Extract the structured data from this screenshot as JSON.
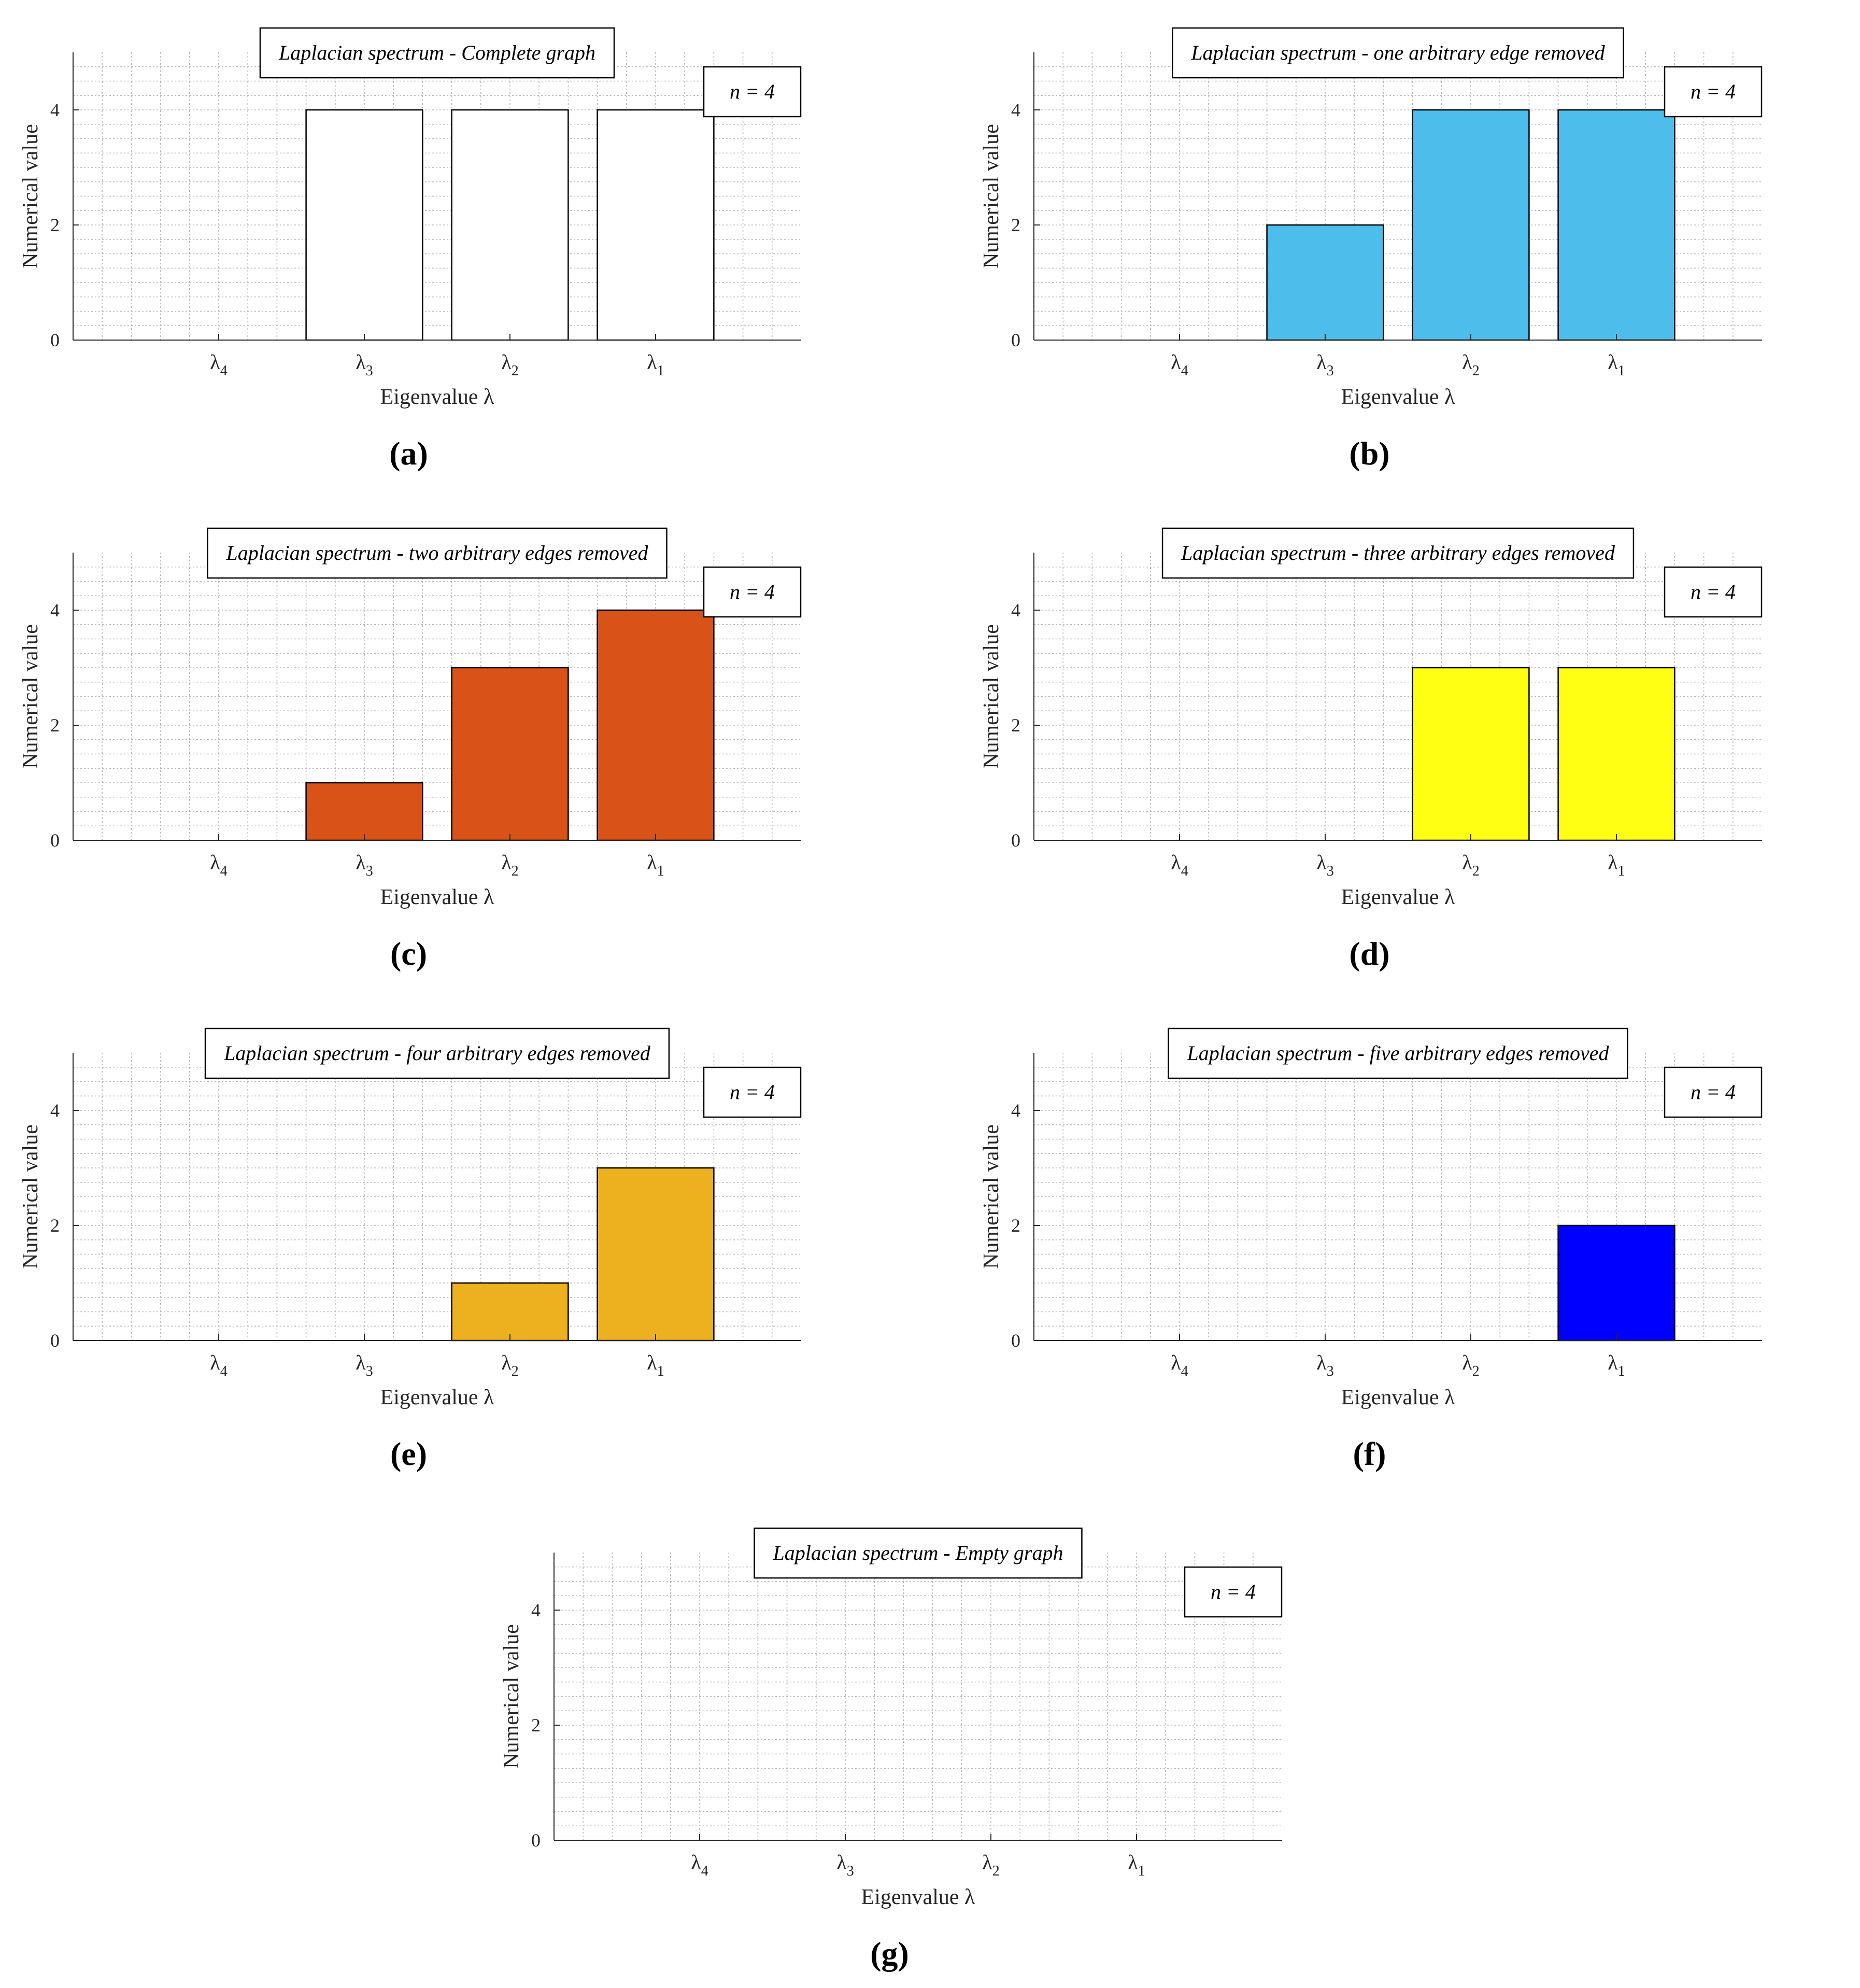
{
  "figure": {
    "panels": [
      {
        "label": "(a)",
        "annotation": "n = 4"
      },
      {
        "label": "(b)",
        "annotation": "n = 4"
      },
      {
        "label": "(c)",
        "annotation": "n = 4"
      },
      {
        "label": "(d)",
        "annotation": "n = 4"
      },
      {
        "label": "(e)",
        "annotation": "n = 4"
      },
      {
        "label": "(f)",
        "annotation": "n = 4"
      },
      {
        "label": "(g)",
        "annotation": "n = 4"
      }
    ]
  },
  "chart_data": [
    {
      "type": "bar",
      "title": "Laplacian spectrum - Complete graph",
      "xlabel": "Eigenvalue λ",
      "ylabel": "Numerical value",
      "categories": [
        "λ4",
        "λ3",
        "λ2",
        "λ1"
      ],
      "category_symbol": "λ",
      "category_subscripts": [
        "4",
        "3",
        "2",
        "1"
      ],
      "values": [
        0,
        4,
        4,
        4
      ],
      "ylim": [
        0,
        5
      ],
      "yticks": [
        "0",
        "2",
        "4"
      ],
      "grid": true,
      "legend": "none",
      "bar_color": "#ffffff"
    },
    {
      "type": "bar",
      "title": "Laplacian spectrum - one arbitrary edge removed",
      "xlabel": "Eigenvalue λ",
      "ylabel": "Numerical value",
      "categories": [
        "λ4",
        "λ3",
        "λ2",
        "λ1"
      ],
      "category_symbol": "λ",
      "category_subscripts": [
        "4",
        "3",
        "2",
        "1"
      ],
      "values": [
        0,
        2,
        4,
        4
      ],
      "ylim": [
        0,
        5
      ],
      "yticks": [
        "0",
        "2",
        "4"
      ],
      "grid": true,
      "legend": "none",
      "bar_color": "#4dbeeb"
    },
    {
      "type": "bar",
      "title": "Laplacian spectrum - two arbitrary edges removed",
      "xlabel": "Eigenvalue λ",
      "ylabel": "Numerical value",
      "categories": [
        "λ4",
        "λ3",
        "λ2",
        "λ1"
      ],
      "category_symbol": "λ",
      "category_subscripts": [
        "4",
        "3",
        "2",
        "1"
      ],
      "values": [
        0,
        1,
        3,
        4
      ],
      "ylim": [
        0,
        5
      ],
      "yticks": [
        "0",
        "2",
        "4"
      ],
      "grid": true,
      "legend": "none",
      "bar_color": "#d95319"
    },
    {
      "type": "bar",
      "title": "Laplacian spectrum - three arbitrary edges removed",
      "xlabel": "Eigenvalue λ",
      "ylabel": "Numerical value",
      "categories": [
        "λ4",
        "λ3",
        "λ2",
        "λ1"
      ],
      "category_symbol": "λ",
      "category_subscripts": [
        "4",
        "3",
        "2",
        "1"
      ],
      "values": [
        0,
        0,
        3,
        3
      ],
      "ylim": [
        0,
        5
      ],
      "yticks": [
        "0",
        "2",
        "4"
      ],
      "grid": true,
      "legend": "none",
      "bar_color": "#ffff14"
    },
    {
      "type": "bar",
      "title": "Laplacian spectrum - four arbitrary edges removed",
      "xlabel": "Eigenvalue λ",
      "ylabel": "Numerical value",
      "categories": [
        "λ4",
        "λ3",
        "λ2",
        "λ1"
      ],
      "category_symbol": "λ",
      "category_subscripts": [
        "4",
        "3",
        "2",
        "1"
      ],
      "values": [
        0,
        0,
        1,
        3
      ],
      "ylim": [
        0,
        5
      ],
      "yticks": [
        "0",
        "2",
        "4"
      ],
      "grid": true,
      "legend": "none",
      "bar_color": "#edb120"
    },
    {
      "type": "bar",
      "title": "Laplacian spectrum - five arbitrary edges removed",
      "xlabel": "Eigenvalue λ",
      "ylabel": "Numerical value",
      "categories": [
        "λ4",
        "λ3",
        "λ2",
        "λ1"
      ],
      "category_symbol": "λ",
      "category_subscripts": [
        "4",
        "3",
        "2",
        "1"
      ],
      "values": [
        0,
        0,
        0,
        2
      ],
      "ylim": [
        0,
        5
      ],
      "yticks": [
        "0",
        "2",
        "4"
      ],
      "grid": true,
      "legend": "none",
      "bar_color": "#0000ff"
    },
    {
      "type": "bar",
      "title": "Laplacian spectrum - Empty graph",
      "xlabel": "Eigenvalue λ",
      "ylabel": "Numerical value",
      "categories": [
        "λ4",
        "λ3",
        "λ2",
        "λ1"
      ],
      "category_symbol": "λ",
      "category_subscripts": [
        "4",
        "3",
        "2",
        "1"
      ],
      "values": [
        0,
        0,
        0,
        0
      ],
      "ylim": [
        0,
        5
      ],
      "yticks": [
        "0",
        "2",
        "4"
      ],
      "grid": true,
      "legend": "none",
      "bar_color": "#ffffff"
    }
  ]
}
